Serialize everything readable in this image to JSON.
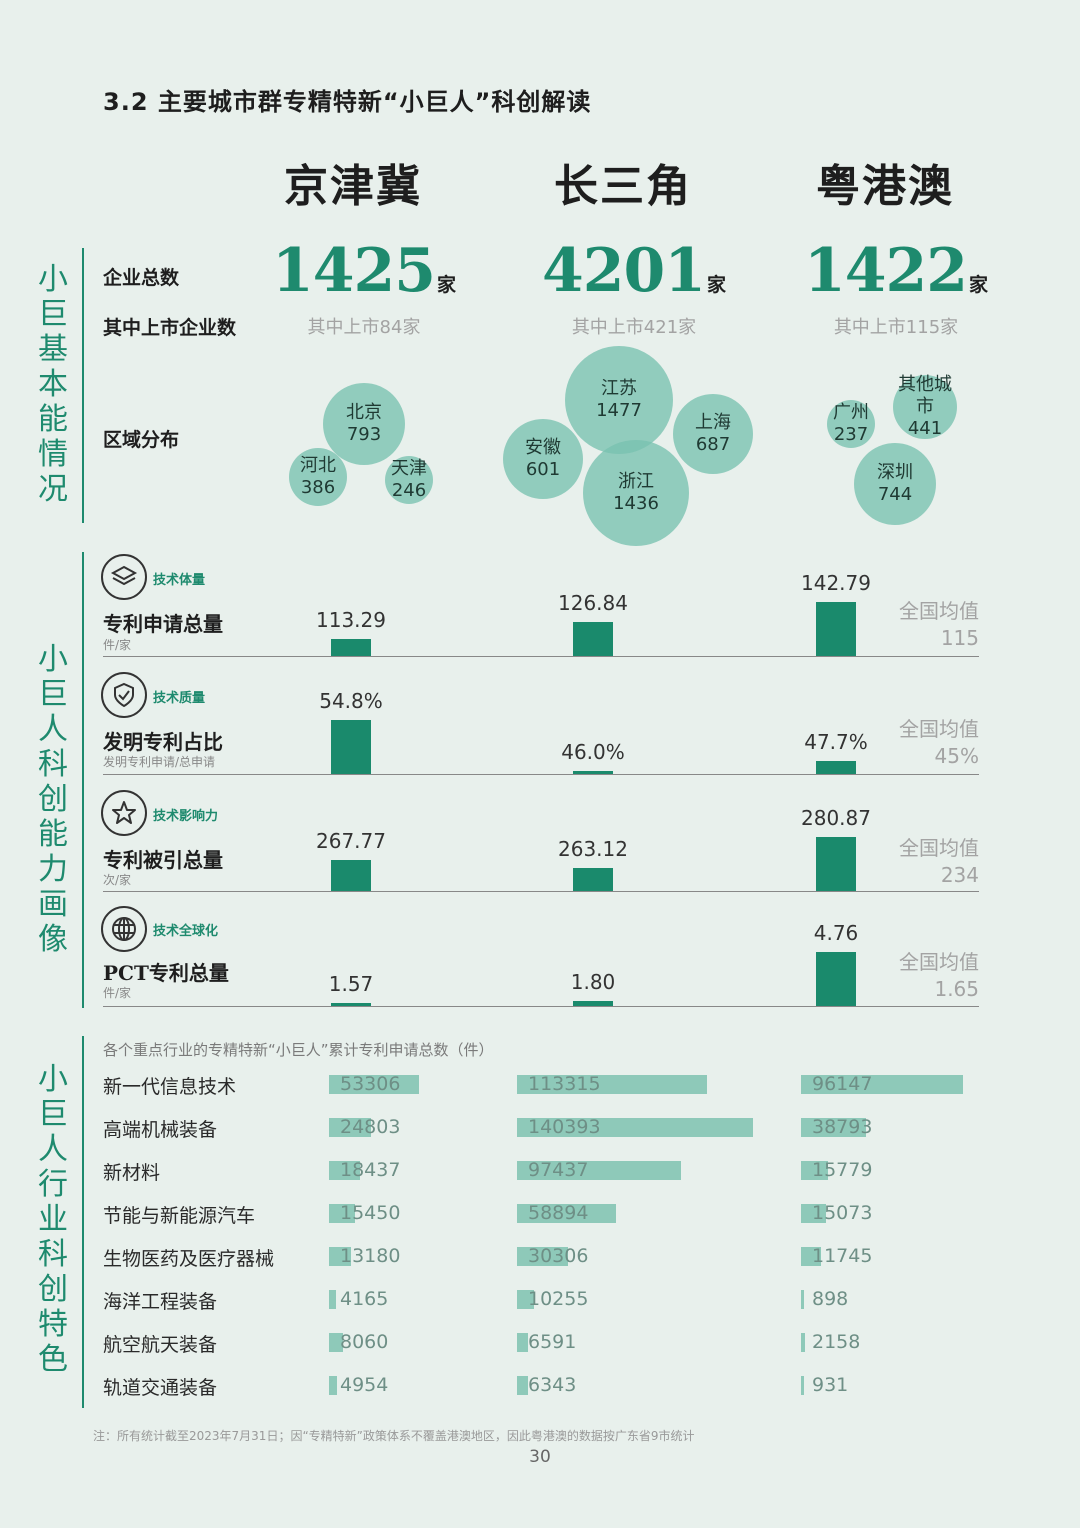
{
  "section_title": "3.2 主要城市群专精特新“小巨人”科创解读",
  "regions": [
    "京津冀",
    "长三角",
    "粤港澳"
  ],
  "side_titles": {
    "basic": "小巨基本能情况",
    "innovation": "小巨人科创能力画像",
    "industry": "小巨人行业科创特色"
  },
  "basic": {
    "total_label": "企业总数",
    "listed_label": "其中上市企业数",
    "distribution_label": "区域分布",
    "unit": "家",
    "totals": [
      "1425",
      "4201",
      "1422"
    ],
    "listed": [
      "其中上市84家",
      "其中上市421家",
      "其中上市115家"
    ],
    "bubbles": {
      "jjj": [
        {
          "name": "北京",
          "value": "793"
        },
        {
          "name": "河北",
          "value": "386"
        },
        {
          "name": "天津",
          "value": "246"
        }
      ],
      "csj": [
        {
          "name": "江苏",
          "value": "1477"
        },
        {
          "name": "安徽",
          "value": "601"
        },
        {
          "name": "上海",
          "value": "687"
        },
        {
          "name": "浙江",
          "value": "1436"
        }
      ],
      "ygo": [
        {
          "name": "广州",
          "value": "237"
        },
        {
          "name": "其他城市",
          "value": "441"
        },
        {
          "name": "深圳",
          "value": "744"
        }
      ]
    }
  },
  "metrics": [
    {
      "tag": "技术体量",
      "icon": "layers-icon",
      "label": "专利申请总量",
      "unit": "件/家",
      "values": [
        113.29,
        126.84,
        142.79
      ],
      "labels": [
        "113.29",
        "126.84",
        "142.79"
      ],
      "avg_label": "全国均值",
      "avg_value": "115",
      "baseline": 100
    },
    {
      "tag": "技术质量",
      "icon": "shield-check-icon",
      "label": "发明专利占比",
      "unit": "发明专利申请/总申请",
      "values": [
        54.8,
        46.0,
        47.7
      ],
      "labels": [
        "54.8%",
        "46.0%",
        "47.7%"
      ],
      "avg_label": "全国均值",
      "avg_value": "45%",
      "baseline": 45.5
    },
    {
      "tag": "技术影响力",
      "icon": "star-icon",
      "label": "专利被引总量",
      "unit": "次/家",
      "values": [
        267.77,
        263.12,
        280.87
      ],
      "labels": [
        "267.77",
        "263.12",
        "280.87"
      ],
      "avg_label": "全国均值",
      "avg_value": "234",
      "baseline": 250
    },
    {
      "tag": "技术全球化",
      "icon": "globe-icon",
      "label": "PCT专利总量",
      "unit": "件/家",
      "values": [
        1.57,
        1.8,
        4.76
      ],
      "labels": [
        "1.57",
        "1.80",
        "4.76"
      ],
      "avg_label": "全国均值",
      "avg_value": "1.65",
      "baseline": 1.5
    }
  ],
  "industry": {
    "caption": "各个重点行业的专精特新“小巨人”累计专利申请总数（件）",
    "rows": [
      {
        "name": "新一代信息技术",
        "values": [
          53306,
          113315,
          96147
        ]
      },
      {
        "name": "高端机械装备",
        "values": [
          24803,
          140393,
          38793
        ]
      },
      {
        "name": "新材料",
        "values": [
          18437,
          97437,
          15779
        ]
      },
      {
        "name": "节能与新能源汽车",
        "values": [
          15450,
          58894,
          15073
        ]
      },
      {
        "name": "生物医药及医疗器械",
        "values": [
          13180,
          30306,
          11745
        ]
      },
      {
        "name": "海洋工程装备",
        "values": [
          4165,
          10255,
          898
        ]
      },
      {
        "name": "航空航天装备",
        "values": [
          8060,
          6591,
          2158
        ]
      },
      {
        "name": "轨道交通装备",
        "values": [
          4954,
          6343,
          931
        ]
      }
    ]
  },
  "footnote": "注：所有统计截至2023年7月31日；因“专精特新”政策体系不覆盖港澳地区，因此粤港澳的数据按广东省9市统计",
  "page_number": "30",
  "colors": {
    "accent": "#1a8a6c",
    "bubble": "#78c1af",
    "industry_bar": "#8ec9b9",
    "background": "#e8f0ec"
  }
}
